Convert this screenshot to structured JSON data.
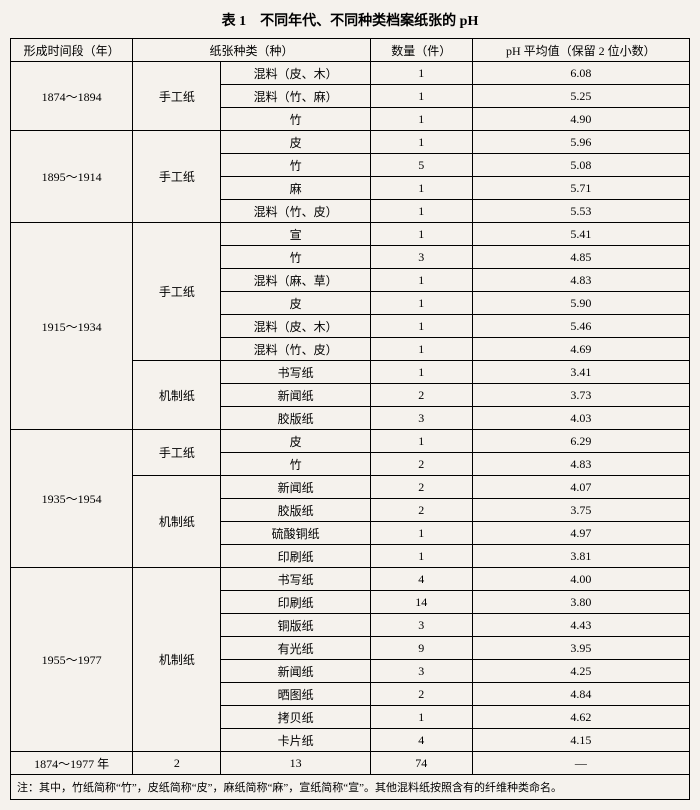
{
  "title": "表 1　不同年代、不同种类档案纸张的 pH",
  "headers": {
    "period": "形成时间段（年）",
    "paper_type": "纸张种类（种）",
    "quantity": "数量（件）",
    "ph": "pH 平均值（保留 2 位小数）"
  },
  "groups": [
    {
      "period": "1874～1894",
      "subgroups": [
        {
          "category": "手工纸",
          "rows": [
            {
              "type": "混料（皮、木）",
              "qty": "1",
              "ph": "6.08"
            },
            {
              "type": "混料（竹、麻）",
              "qty": "1",
              "ph": "5.25"
            },
            {
              "type": "竹",
              "qty": "1",
              "ph": "4.90"
            }
          ]
        }
      ]
    },
    {
      "period": "1895～1914",
      "subgroups": [
        {
          "category": "手工纸",
          "rows": [
            {
              "type": "皮",
              "qty": "1",
              "ph": "5.96"
            },
            {
              "type": "竹",
              "qty": "5",
              "ph": "5.08"
            },
            {
              "type": "麻",
              "qty": "1",
              "ph": "5.71"
            },
            {
              "type": "混料（竹、皮）",
              "qty": "1",
              "ph": "5.53"
            }
          ]
        }
      ]
    },
    {
      "period": "1915～1934",
      "subgroups": [
        {
          "category": "手工纸",
          "rows": [
            {
              "type": "宣",
              "qty": "1",
              "ph": "5.41"
            },
            {
              "type": "竹",
              "qty": "3",
              "ph": "4.85"
            },
            {
              "type": "混料（麻、草）",
              "qty": "1",
              "ph": "4.83"
            },
            {
              "type": "皮",
              "qty": "1",
              "ph": "5.90"
            },
            {
              "type": "混料（皮、木）",
              "qty": "1",
              "ph": "5.46"
            },
            {
              "type": "混料（竹、皮）",
              "qty": "1",
              "ph": "4.69"
            }
          ]
        },
        {
          "category": "机制纸",
          "rows": [
            {
              "type": "书写纸",
              "qty": "1",
              "ph": "3.41"
            },
            {
              "type": "新闻纸",
              "qty": "2",
              "ph": "3.73"
            },
            {
              "type": "胶版纸",
              "qty": "3",
              "ph": "4.03"
            }
          ]
        }
      ]
    },
    {
      "period": "1935～1954",
      "subgroups": [
        {
          "category": "手工纸",
          "rows": [
            {
              "type": "皮",
              "qty": "1",
              "ph": "6.29"
            },
            {
              "type": "竹",
              "qty": "2",
              "ph": "4.83"
            }
          ]
        },
        {
          "category": "机制纸",
          "rows": [
            {
              "type": "新闻纸",
              "qty": "2",
              "ph": "4.07"
            },
            {
              "type": "胶版纸",
              "qty": "2",
              "ph": "3.75"
            },
            {
              "type": "硫酸铜纸",
              "qty": "1",
              "ph": "4.97"
            },
            {
              "type": "印刷纸",
              "qty": "1",
              "ph": "3.81"
            }
          ]
        }
      ]
    },
    {
      "period": "1955～1977",
      "subgroups": [
        {
          "category": "机制纸",
          "rows": [
            {
              "type": "书写纸",
              "qty": "4",
              "ph": "4.00"
            },
            {
              "type": "印刷纸",
              "qty": "14",
              "ph": "3.80"
            },
            {
              "type": "铜版纸",
              "qty": "3",
              "ph": "4.43"
            },
            {
              "type": "有光纸",
              "qty": "9",
              "ph": "3.95"
            },
            {
              "type": "新闻纸",
              "qty": "3",
              "ph": "4.25"
            },
            {
              "type": "晒图纸",
              "qty": "2",
              "ph": "4.84"
            },
            {
              "type": "拷贝纸",
              "qty": "1",
              "ph": "4.62"
            },
            {
              "type": "卡片纸",
              "qty": "4",
              "ph": "4.15"
            }
          ]
        }
      ]
    }
  ],
  "summary": {
    "period": "1874～1977 年",
    "col2": "2",
    "col3": "13",
    "qty": "74",
    "ph": "—"
  },
  "footnote": "注：其中，竹纸简称“竹”，皮纸简称“皮”，麻纸简称“麻”，宣纸简称“宣”。其他混料纸按照含有的纤维种类命名。"
}
